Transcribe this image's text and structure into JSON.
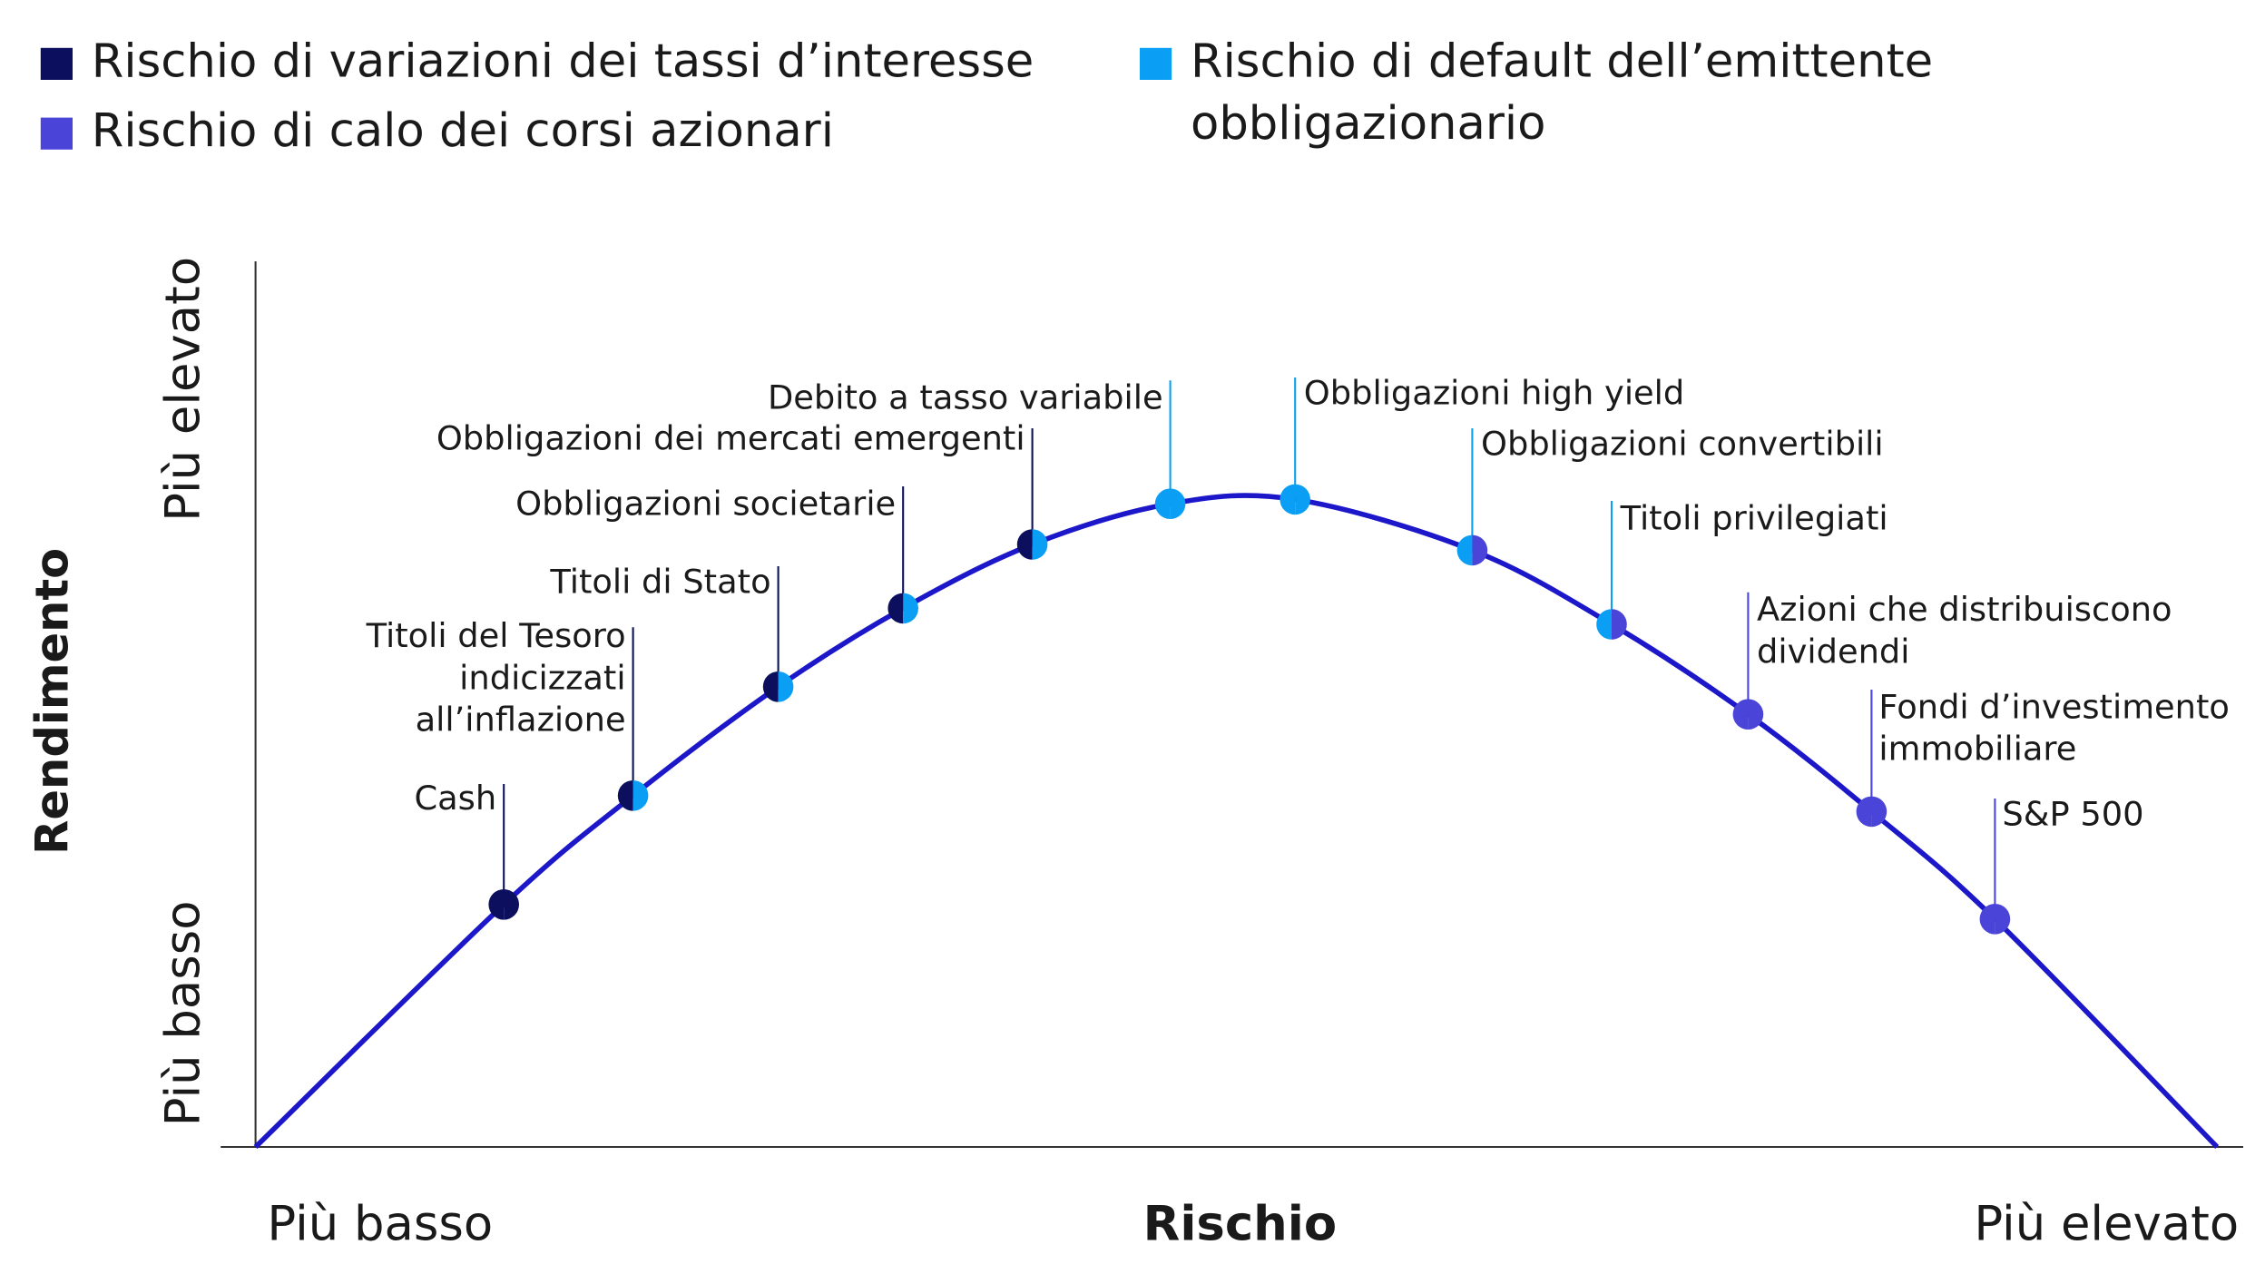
{
  "legend": [
    {
      "label": [
        "Rischio di variazioni dei tassi d’interesse"
      ],
      "color": "#0b0f5e"
    },
    {
      "label": [
        "Rischio di calo dei corsi azionari"
      ],
      "color": "#4b44d8"
    },
    {
      "label": [
        "Rischio di default dell’emittente",
        "obbligazionario"
      ],
      "color": "#0a9ff5"
    }
  ],
  "axes": {
    "y_title": "Rendimento",
    "y_low": "Più basso",
    "y_high": "Più elevato",
    "x_title": "Rischio",
    "x_low": "Più basso",
    "x_high": "Più elevato"
  },
  "curve_color": "#1c17c9",
  "points": [
    {
      "label": [
        "Cash"
      ]
    },
    {
      "label": [
        "Titoli del Tesoro",
        "indicizzati",
        "all’inflazione"
      ]
    },
    {
      "label": [
        "Titoli di Stato"
      ]
    },
    {
      "label": [
        "Obbligazioni societarie"
      ]
    },
    {
      "label": [
        "Obbligazioni dei mercati emergenti"
      ]
    },
    {
      "label": [
        "Debito a tasso variabile"
      ]
    },
    {
      "label": [
        "Obbligazioni high yield"
      ]
    },
    {
      "label": [
        "Obbligazioni convertibili"
      ]
    },
    {
      "label": [
        "Titoli privilegiati"
      ]
    },
    {
      "label": [
        "Azioni che distribuiscono",
        "dividendi"
      ]
    },
    {
      "label": [
        "Fondi d’investimento",
        "immobiliare"
      ]
    },
    {
      "label": [
        "S&P 500"
      ]
    }
  ]
}
